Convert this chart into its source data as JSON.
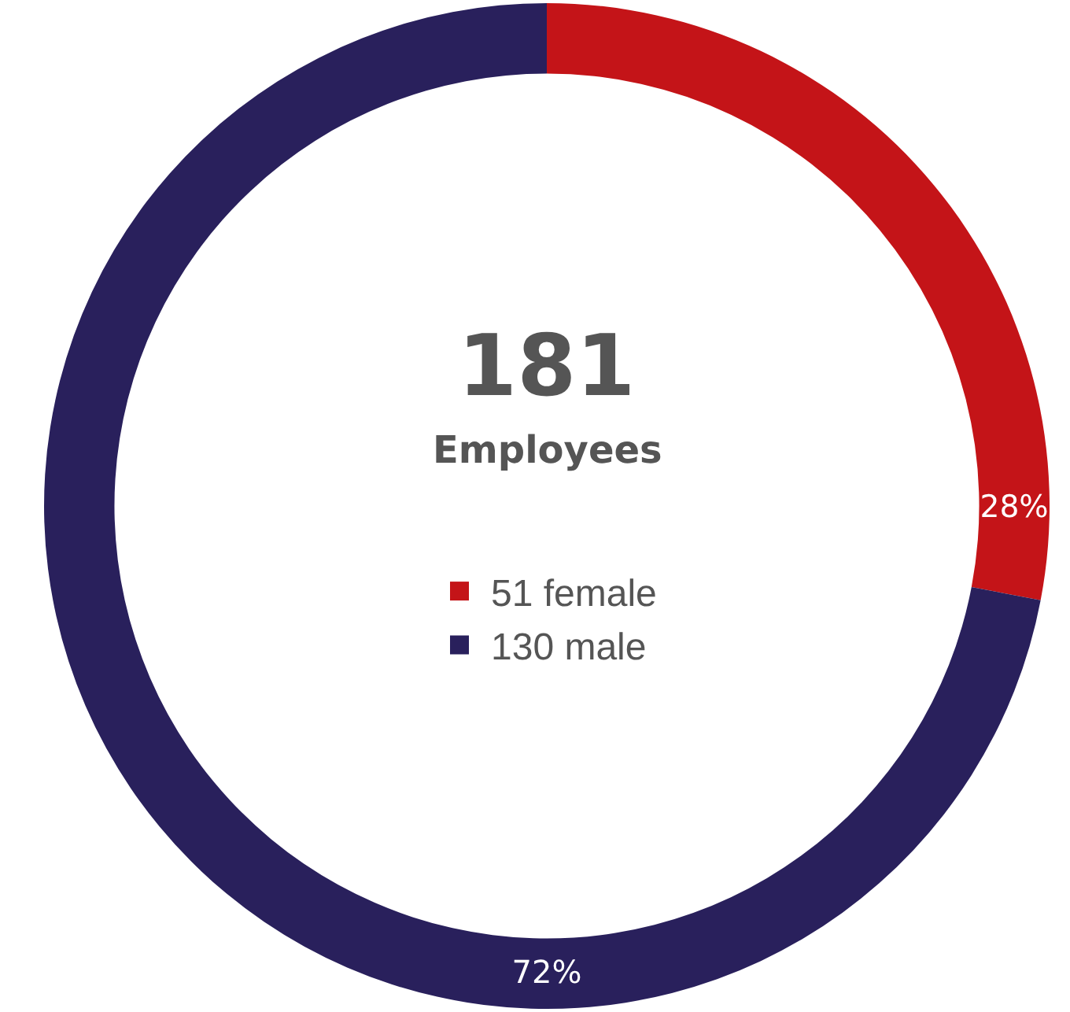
{
  "chart_data": {
    "type": "donut",
    "title": "181",
    "subtitle": "Employees",
    "categories": [
      "51 female",
      "130 male"
    ],
    "values": [
      28,
      72
    ],
    "colors": [
      "#c41418",
      "#29205c"
    ],
    "value_labels": [
      "28%",
      "72%"
    ],
    "legend": "center"
  }
}
